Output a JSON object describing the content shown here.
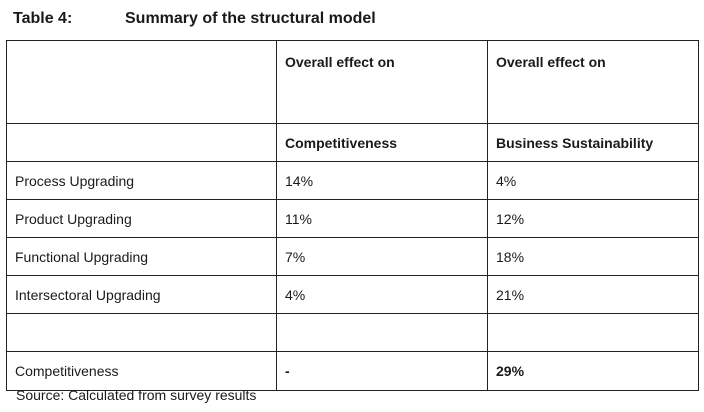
{
  "caption": {
    "number": "Table 4:",
    "title": "Summary of the structural model"
  },
  "table": {
    "header1": [
      "",
      "Overall effect on",
      "Overall effect on"
    ],
    "header2": [
      "",
      "Competitiveness",
      "Business Sustainability"
    ],
    "rows": [
      [
        "Process Upgrading",
        "14%",
        "4%"
      ],
      [
        "Product Upgrading",
        "11%",
        "12%"
      ],
      [
        "Functional Upgrading",
        "7%",
        "18%"
      ],
      [
        "Intersectoral Upgrading",
        "4%",
        "21%"
      ],
      [
        "",
        "",
        ""
      ],
      [
        "Competitiveness",
        "-",
        "29%"
      ]
    ]
  },
  "source": "Source: Calculated from survey results"
}
